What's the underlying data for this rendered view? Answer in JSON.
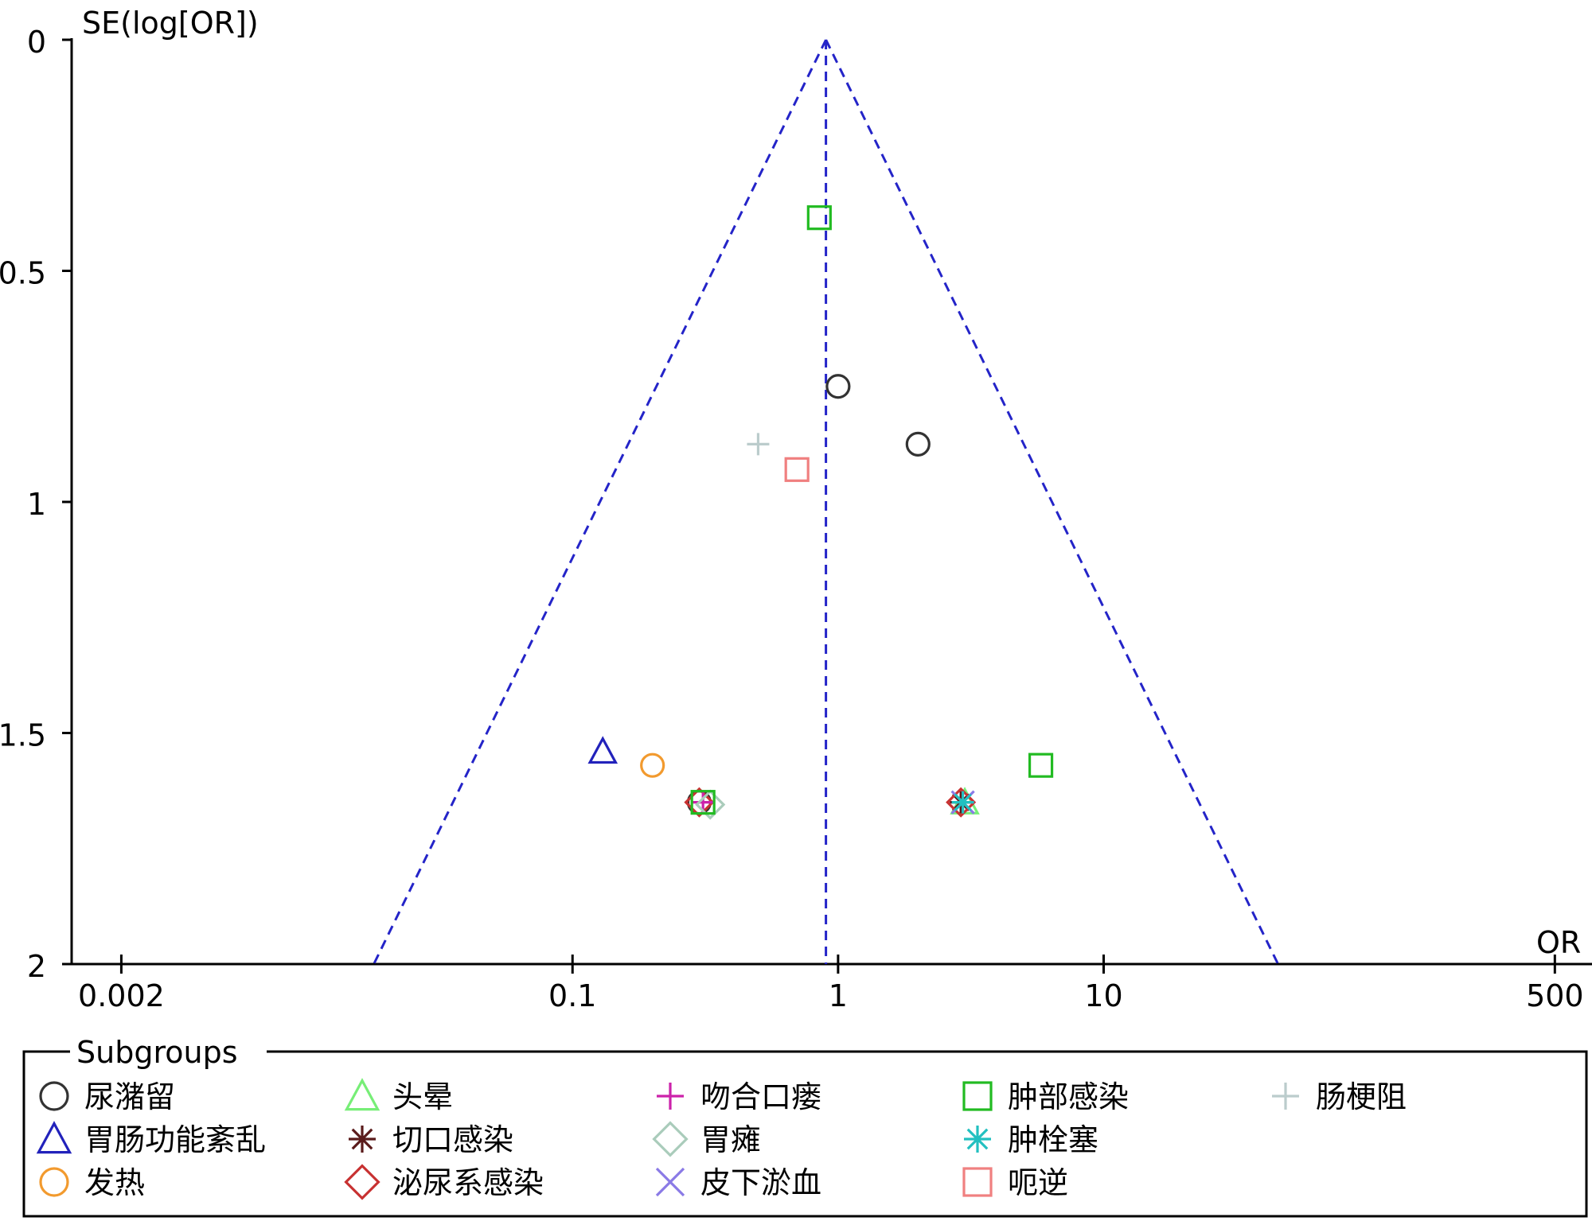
{
  "chart_data": {
    "type": "scatter",
    "subtype": "funnel-plot",
    "x_scale": "log",
    "y_inverted": true,
    "y_axis_title": "SE(log[OR])",
    "x_axis_title": "OR",
    "x_ticks": [
      {
        "value": 0.002,
        "label": "0.002"
      },
      {
        "value": 0.1,
        "label": "0.1"
      },
      {
        "value": 1,
        "label": "1"
      },
      {
        "value": 10,
        "label": "10"
      },
      {
        "value": 500,
        "label": "500"
      }
    ],
    "y_ticks": [
      {
        "value": 0,
        "label": "0"
      },
      {
        "value": 0.5,
        "label": "0.5"
      },
      {
        "value": 1,
        "label": "1"
      },
      {
        "value": 1.5,
        "label": "1.5"
      },
      {
        "value": 2,
        "label": "2"
      }
    ],
    "xlim": [
      0.0013,
      690
    ],
    "ylim": [
      0,
      2
    ],
    "pooled_or": 0.9,
    "funnel_color": "#2424c8",
    "legend": {
      "title": "Subgroups",
      "placement": "bottom"
    },
    "series": [
      {
        "name": "尿潴留",
        "marker": "circle",
        "color": "#333333",
        "points": [
          {
            "x": 1.0,
            "y": 0.75
          },
          {
            "x": 2.0,
            "y": 0.875
          },
          {
            "x": 0.3,
            "y": 1.65
          }
        ]
      },
      {
        "name": "胃肠功能紊乱",
        "marker": "triangle",
        "color": "#2222bb",
        "points": [
          {
            "x": 0.13,
            "y": 1.54
          }
        ]
      },
      {
        "name": "发热",
        "marker": "circle",
        "color": "#f29a2e",
        "points": [
          {
            "x": 0.2,
            "y": 1.57
          }
        ]
      },
      {
        "name": "头晕",
        "marker": "triangle",
        "color": "#77ee77",
        "points": [
          {
            "x": 3.0,
            "y": 1.65
          }
        ]
      },
      {
        "name": "切口感染",
        "marker": "asterisk",
        "color": "#5a1a1a",
        "points": [
          {
            "x": 2.9,
            "y": 1.65
          }
        ]
      },
      {
        "name": "泌尿系感染",
        "marker": "diamond",
        "color": "#c83232",
        "points": [
          {
            "x": 0.3,
            "y": 1.65
          },
          {
            "x": 2.9,
            "y": 1.65
          }
        ]
      },
      {
        "name": "吻合口瘘",
        "marker": "plus",
        "color": "#cc22aa",
        "points": [
          {
            "x": 0.31,
            "y": 1.65
          }
        ]
      },
      {
        "name": "胃瘫",
        "marker": "diamond",
        "color": "#aaccbb",
        "points": [
          {
            "x": 0.33,
            "y": 1.655
          }
        ]
      },
      {
        "name": "皮下淤血",
        "marker": "x",
        "color": "#8a7ae6",
        "points": [
          {
            "x": 2.95,
            "y": 1.65
          }
        ]
      },
      {
        "name": "肿部感染",
        "marker": "square",
        "color": "#22bb22",
        "points": [
          {
            "x": 0.85,
            "y": 0.385
          },
          {
            "x": 5.8,
            "y": 1.57
          },
          {
            "x": 0.31,
            "y": 1.65
          }
        ]
      },
      {
        "name": "肿栓塞",
        "marker": "asterisk",
        "color": "#22c0c0",
        "points": [
          {
            "x": 2.95,
            "y": 1.65
          }
        ]
      },
      {
        "name": "呃逆",
        "marker": "square",
        "color": "#f08080",
        "points": [
          {
            "x": 0.7,
            "y": 0.93
          }
        ]
      },
      {
        "name": "肠梗阻",
        "marker": "plus",
        "color": "#bbcccc",
        "points": [
          {
            "x": 0.5,
            "y": 0.875
          }
        ]
      }
    ]
  }
}
